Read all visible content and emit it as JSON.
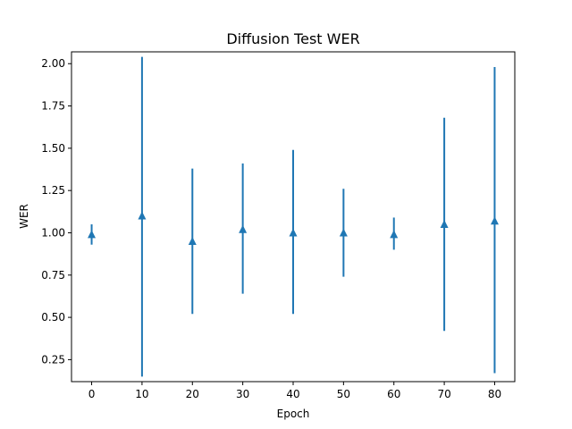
{
  "chart_data": {
    "type": "scatter",
    "title": "Diffusion Test WER",
    "xlabel": "Epoch",
    "ylabel": "WER",
    "xlim": [
      -4,
      84
    ],
    "ylim": [
      0.12,
      2.07
    ],
    "xticks": [
      0,
      10,
      20,
      30,
      40,
      50,
      60,
      70,
      80
    ],
    "xtick_labels": [
      "0",
      "10",
      "20",
      "30",
      "40",
      "50",
      "60",
      "70",
      "80"
    ],
    "yticks": [
      0.25,
      0.5,
      0.75,
      1.0,
      1.25,
      1.5,
      1.75,
      2.0
    ],
    "ytick_labels": [
      "0.25",
      "0.50",
      "0.75",
      "1.00",
      "1.25",
      "1.50",
      "1.75",
      "2.00"
    ],
    "grid": false,
    "series": [
      {
        "color": "#1f77b4",
        "marker": "triangle-up",
        "x": [
          0,
          10,
          20,
          30,
          40,
          50,
          60,
          70,
          80
        ],
        "y": [
          0.99,
          1.1,
          0.95,
          1.02,
          1.0,
          1.0,
          0.99,
          1.05,
          1.07
        ],
        "error_low": [
          0.93,
          0.15,
          0.52,
          0.64,
          0.52,
          0.74,
          0.9,
          0.42,
          0.17
        ],
        "error_high": [
          1.05,
          2.04,
          1.38,
          1.41,
          1.49,
          1.26,
          1.09,
          1.68,
          1.98
        ]
      }
    ]
  }
}
